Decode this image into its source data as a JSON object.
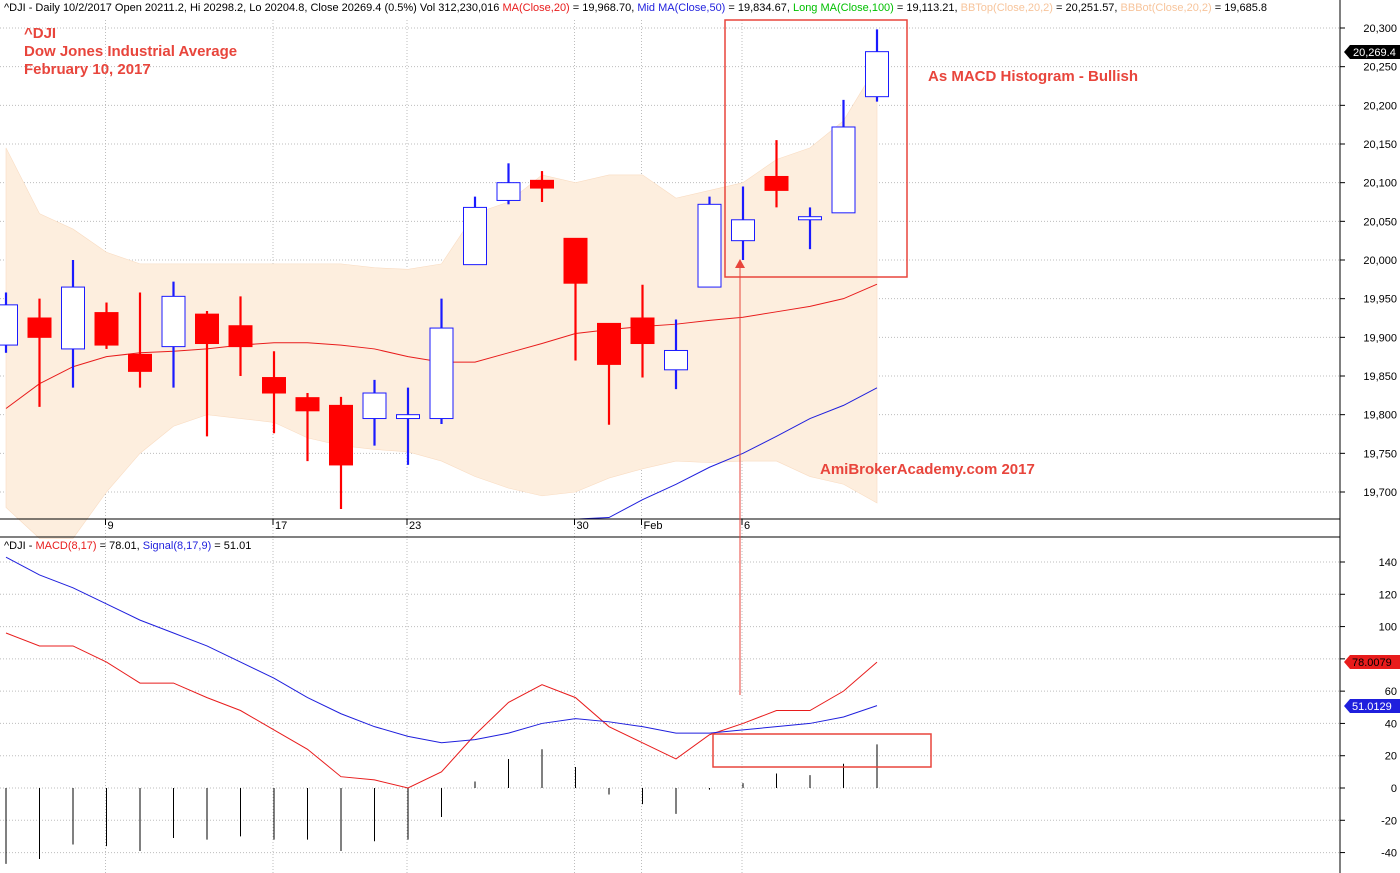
{
  "colors": {
    "up_body": "#1a1aff",
    "down_body": "#ff0000",
    "ma20": "#e81c1c",
    "ma50": "#1f1fdd",
    "long_ma": "#00c000",
    "bb_fill": "#fdeede",
    "bb_label": "#f7c49b",
    "grid": "#bdbdbd",
    "annotation": "#e8453c",
    "macd": "#e81c1c",
    "signal": "#1f1fdd",
    "price_badge": "#000000"
  },
  "header": {
    "price_segments": [
      {
        "text": "^DJI - Daily 10/2/2017 Open 20211.2, Hi 20298.2, Lo 20204.8, Close 20269.4 (0.5%) Vol 312,230,016 ",
        "color": "#000000"
      },
      {
        "text": "MA(Close,20)",
        "color": "#e81c1c"
      },
      {
        "text": " = 19,968.70, ",
        "color": "#000000"
      },
      {
        "text": "Mid MA(Close,50)",
        "color": "#1f1fdd"
      },
      {
        "text": " = 19,834.67, ",
        "color": "#000000"
      },
      {
        "text": "Long MA(Close,100)",
        "color": "#00c000"
      },
      {
        "text": " = 19,113.21, ",
        "color": "#000000"
      },
      {
        "text": "BBTop(Close,20,2)",
        "color": "#f7c49b"
      },
      {
        "text": " = 20,251.57, ",
        "color": "#000000"
      },
      {
        "text": "BBBot(Close,20,2)",
        "color": "#f7c49b"
      },
      {
        "text": " = 19,685.8",
        "color": "#000000"
      }
    ],
    "macd_segments": [
      {
        "text": "^DJI - ",
        "color": "#000000"
      },
      {
        "text": "MACD(8,17)",
        "color": "#e81c1c"
      },
      {
        "text": " = 78.01, ",
        "color": "#000000"
      },
      {
        "text": "Signal(8,17,9)",
        "color": "#1f1fdd"
      },
      {
        "text": " = 51.01",
        "color": "#000000"
      }
    ]
  },
  "annotations": {
    "symbol": "^DJI",
    "name": "Dow Jones Industrial Average",
    "date": "February 10, 2017",
    "histogram_note": "As MACD Histogram - Bullish",
    "watermark": "AmiBrokerAcademy.com  2017"
  },
  "badges": {
    "close": "20,269.4",
    "macd": "78.0079",
    "signal": "51.0129"
  },
  "chart_data": [
    {
      "type": "candlestick",
      "title": "",
      "ylim": [
        19665,
        20305
      ],
      "y_ticks": [
        19700,
        19750,
        19800,
        19850,
        19900,
        19950,
        20000,
        20050,
        20100,
        20150,
        20200,
        20250,
        20300
      ],
      "y_tick_labels": [
        "19,700",
        "19,750",
        "19,800",
        "19,850",
        "19,900",
        "19,950",
        "20,000",
        "20,050",
        "20,100",
        "20,150",
        "20,200",
        "20,250",
        "20,300"
      ],
      "x_tick_labels": [
        {
          "index": 3,
          "label": "9"
        },
        {
          "index": 8,
          "label": "17"
        },
        {
          "index": 12,
          "label": "23"
        },
        {
          "index": 17,
          "label": "30"
        },
        {
          "index": 19,
          "label": "Feb"
        },
        {
          "index": 22,
          "label": "6"
        }
      ],
      "candles": [
        {
          "o": 19890,
          "h": 19958,
          "l": 19880,
          "c": 19942
        },
        {
          "o": 19925,
          "h": 19950,
          "l": 19810,
          "c": 19900
        },
        {
          "o": 19885,
          "h": 20000,
          "l": 19835,
          "c": 19965
        },
        {
          "o": 19932,
          "h": 19945,
          "l": 19885,
          "c": 19890
        },
        {
          "o": 19878,
          "h": 19958,
          "l": 19835,
          "c": 19856
        },
        {
          "o": 19888,
          "h": 19972,
          "l": 19835,
          "c": 19953
        },
        {
          "o": 19930,
          "h": 19934,
          "l": 19772,
          "c": 19892
        },
        {
          "o": 19915,
          "h": 19953,
          "l": 19850,
          "c": 19888
        },
        {
          "o": 19848,
          "h": 19882,
          "l": 19776,
          "c": 19828
        },
        {
          "o": 19822,
          "h": 19828,
          "l": 19740,
          "c": 19805
        },
        {
          "o": 19812,
          "h": 19823,
          "l": 19678,
          "c": 19735
        },
        {
          "o": 19795,
          "h": 19845,
          "l": 19760,
          "c": 19828
        },
        {
          "o": 19795,
          "h": 19835,
          "l": 19735,
          "c": 19800
        },
        {
          "o": 19795,
          "h": 19950,
          "l": 19788,
          "c": 19912
        },
        {
          "o": 19994,
          "h": 20082,
          "l": 19994,
          "c": 20068
        },
        {
          "o": 20077,
          "h": 20125,
          "l": 20072,
          "c": 20100
        },
        {
          "o": 20103,
          "h": 20115,
          "l": 20075,
          "c": 20093
        },
        {
          "o": 20028,
          "h": 20028,
          "l": 19870,
          "c": 19970
        },
        {
          "o": 19918,
          "h": 19918,
          "l": 19787,
          "c": 19865
        },
        {
          "o": 19925,
          "h": 19968,
          "l": 19848,
          "c": 19892
        },
        {
          "o": 19858,
          "h": 19923,
          "l": 19833,
          "c": 19883
        },
        {
          "o": 19965,
          "h": 20082,
          "l": 19965,
          "c": 20072
        },
        {
          "o": 20025,
          "h": 20095,
          "l": 20000,
          "c": 20052
        },
        {
          "o": 20108,
          "h": 20155,
          "l": 20068,
          "c": 20090
        },
        {
          "o": 20052,
          "h": 20068,
          "l": 20014,
          "c": 20056
        },
        {
          "o": 20061,
          "h": 20207,
          "l": 20061,
          "c": 20172
        },
        {
          "o": 20211.2,
          "h": 20298.2,
          "l": 20204.8,
          "c": 20269.4
        }
      ],
      "ma20": [
        19808,
        19840,
        19862,
        19875,
        19880,
        19882,
        19885,
        19890,
        19893,
        19893,
        19890,
        19885,
        19875,
        19868,
        19868,
        19880,
        19892,
        19905,
        19910,
        19914,
        19917,
        19922,
        19926,
        19933,
        19940,
        19950,
        19968.7
      ],
      "ma50": [
        null,
        null,
        null,
        null,
        null,
        null,
        null,
        null,
        null,
        null,
        null,
        null,
        null,
        null,
        null,
        null,
        null,
        19665,
        19667,
        19690,
        19710,
        19732,
        19750,
        19772,
        19795,
        19812,
        19834.67
      ],
      "bb_top": [
        20145,
        20060,
        20040,
        20010,
        19995,
        19995,
        19995,
        19995,
        19995,
        19995,
        19995,
        19990,
        19988,
        19995,
        20060,
        20075,
        20110,
        20100,
        20110,
        20110,
        20080,
        20090,
        20100,
        20130,
        20145,
        20180,
        20251.57
      ],
      "bb_bot": [
        19680,
        19640,
        19640,
        19700,
        19750,
        19785,
        19800,
        19795,
        19790,
        19770,
        19760,
        19755,
        19752,
        19740,
        19720,
        19705,
        19695,
        19700,
        19718,
        19730,
        19740,
        19738,
        19740,
        19740,
        19720,
        19710,
        19685.8
      ]
    },
    {
      "type": "line",
      "title": "",
      "ylim": [
        -52,
        158
      ],
      "y_ticks": [
        -40,
        -20,
        0,
        20,
        40,
        60,
        80,
        100,
        120,
        140
      ],
      "series": [
        {
          "name": "MACD(8,17)",
          "values": [
            96,
            88,
            88,
            78,
            65,
            65,
            56,
            48,
            36,
            24,
            7,
            5,
            0,
            10,
            33,
            53,
            64,
            56,
            38,
            28,
            18,
            33,
            40,
            48,
            48,
            60,
            78.01
          ]
        },
        {
          "name": "Signal(8,17,9)",
          "values": [
            143,
            132,
            124,
            114,
            104,
            96,
            88,
            78,
            68,
            56,
            46,
            38,
            32,
            28,
            30,
            34,
            40,
            43,
            41,
            38,
            34,
            34,
            36,
            38,
            40,
            44,
            51.01
          ]
        },
        {
          "name": "Histogram",
          "values": [
            -47,
            -44,
            -35,
            -36,
            -39,
            -31,
            -32,
            -30,
            -32,
            -32,
            -39,
            -33,
            -32,
            -18,
            4,
            18,
            24,
            13,
            -4,
            -10,
            -16,
            -1,
            3,
            9,
            8,
            15,
            27
          ]
        }
      ]
    }
  ]
}
